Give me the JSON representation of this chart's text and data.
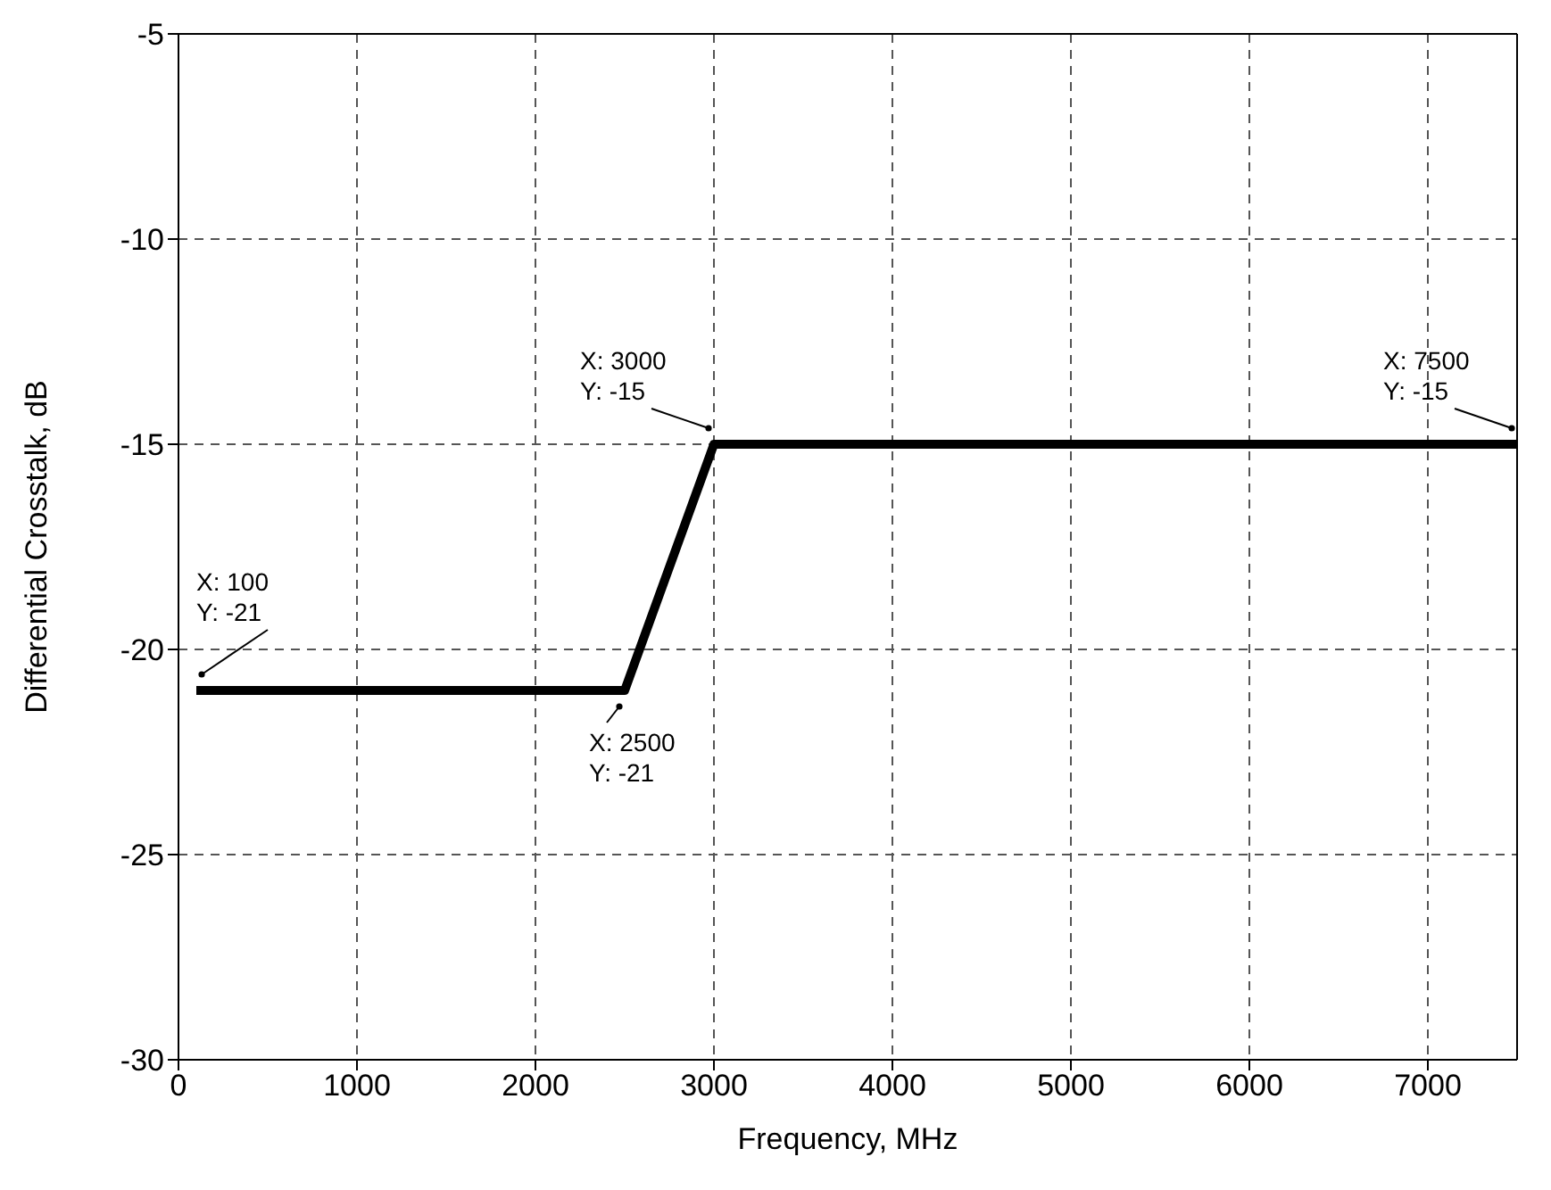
{
  "chart_data": {
    "type": "line",
    "xlabel": "Frequency, MHz",
    "ylabel": "Differential Crosstalk, dB",
    "x": [
      100,
      2500,
      3000,
      7500
    ],
    "series": [
      {
        "color": "#000000",
        "values": [
          -21,
          -21,
          -15,
          -15
        ]
      }
    ],
    "xlim": [
      0,
      7500
    ],
    "xticks": [
      0,
      1000,
      2000,
      3000,
      4000,
      5000,
      6000,
      7000
    ],
    "ylim": [
      -30,
      -5
    ],
    "yticks": [
      -30,
      -25,
      -20,
      -15,
      -10,
      -5
    ],
    "grid": true,
    "line_style": "solid",
    "marker": "none",
    "legend": false,
    "annotations": [
      {
        "text": "X: 100\nY: -21",
        "x": 100,
        "y": -21
      },
      {
        "text": "X: 2500\nY: -21",
        "x": 2500,
        "y": -21
      },
      {
        "text": "X: 3000\nY: -15",
        "x": 3000,
        "y": -15
      },
      {
        "text": "X: 7500\nY: -15",
        "x": 7500,
        "y": -15
      }
    ]
  }
}
